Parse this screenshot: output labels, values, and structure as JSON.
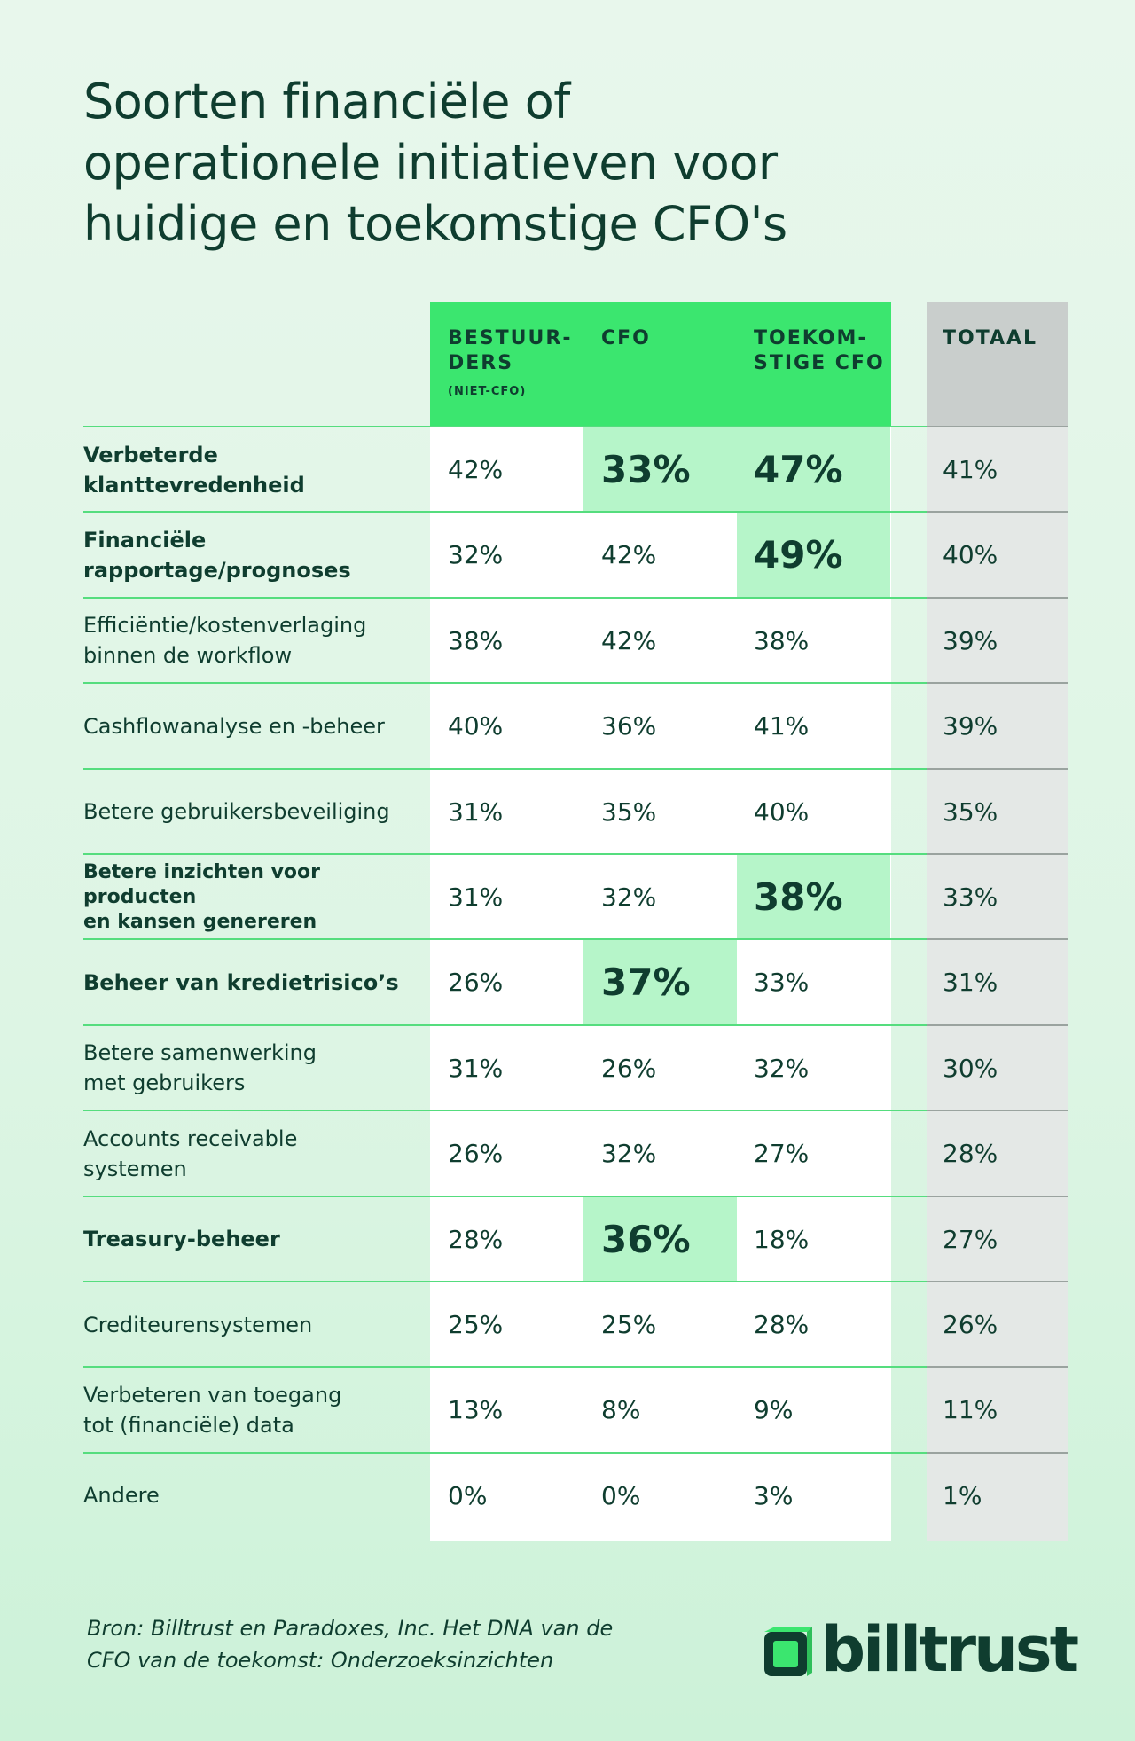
{
  "chart_data": {
    "type": "table",
    "title": [
      "Soorten financiële of",
      "operationele initiatieven voor",
      "huidige en toekomstige CFO's"
    ],
    "columns": [
      {
        "key": "b",
        "label_lines": [
          "BESTUUR-",
          "DERS"
        ],
        "sublabel": "(NIET-CFO)"
      },
      {
        "key": "c",
        "label_lines": [
          "CFO"
        ],
        "sublabel": ""
      },
      {
        "key": "t",
        "label_lines": [
          "TOEKOM-",
          "STIGE CFO"
        ],
        "sublabel": ""
      },
      {
        "key": "tot",
        "label_lines": [
          "TOTAAL"
        ],
        "sublabel": ""
      }
    ],
    "rows": [
      {
        "label": [
          "Verbeterde",
          "klanttevredenheid"
        ],
        "bold": true,
        "b": "42%",
        "c": "33%",
        "t": "47%",
        "tot": "41%",
        "highlight": [
          "c",
          "t"
        ]
      },
      {
        "label": [
          "Financiële",
          "rapportage/prognoses"
        ],
        "bold": true,
        "b": "32%",
        "c": "42%",
        "t": "49%",
        "tot": "40%",
        "highlight": [
          "t"
        ]
      },
      {
        "label": [
          "Efficiëntie/kostenverlaging",
          "binnen de workflow"
        ],
        "bold": false,
        "b": "38%",
        "c": "42%",
        "t": "38%",
        "tot": "39%",
        "highlight": []
      },
      {
        "label": [
          "Cashflowanalyse en -beheer"
        ],
        "bold": false,
        "b": "40%",
        "c": "36%",
        "t": "41%",
        "tot": "39%",
        "highlight": []
      },
      {
        "label": [
          "Betere gebruikersbeveiliging"
        ],
        "bold": false,
        "b": "31%",
        "c": "35%",
        "t": "40%",
        "tot": "35%",
        "highlight": []
      },
      {
        "label": [
          "Betere inzichten voor producten",
          "en kansen genereren"
        ],
        "bold": true,
        "small": true,
        "b": "31%",
        "c": "32%",
        "t": "38%",
        "tot": "33%",
        "highlight": [
          "t"
        ]
      },
      {
        "label": [
          "Beheer van kredietrisico’s"
        ],
        "bold": true,
        "b": "26%",
        "c": "37%",
        "t": "33%",
        "tot": "31%",
        "highlight": [
          "c"
        ]
      },
      {
        "label": [
          "Betere samenwerking",
          "met gebruikers"
        ],
        "bold": false,
        "b": "31%",
        "c": "26%",
        "t": "32%",
        "tot": "30%",
        "highlight": []
      },
      {
        "label": [
          "Accounts receivable",
          "systemen"
        ],
        "bold": false,
        "b": "26%",
        "c": "32%",
        "t": "27%",
        "tot": "28%",
        "highlight": []
      },
      {
        "label": [
          "Treasury-beheer"
        ],
        "bold": true,
        "b": "28%",
        "c": "36%",
        "t": "18%",
        "tot": "27%",
        "highlight": [
          "c"
        ]
      },
      {
        "label": [
          "Crediteurensystemen"
        ],
        "bold": false,
        "b": "25%",
        "c": "25%",
        "t": "28%",
        "tot": "26%",
        "highlight": []
      },
      {
        "label": [
          "Verbeteren van toegang",
          "tot (financiële) data"
        ],
        "bold": false,
        "b": "13%",
        "c": "8%",
        "t": "9%",
        "tot": "11%",
        "highlight": []
      },
      {
        "label": [
          "Andere"
        ],
        "bold": false,
        "b": "0%",
        "c": "0%",
        "t": "3%",
        "tot": "1%",
        "highlight": []
      }
    ],
    "colors": {
      "header_green": "#3be66f",
      "highlight": "#b6f5c9",
      "total_bg": "#e4e8e6",
      "total_header": "#c9cecc",
      "text": "#0f3d2f",
      "rule": "#55dd7e"
    }
  },
  "source": [
    "Bron: Billtrust en Paradoxes, Inc. Het DNA van de",
    "CFO van de toekomst: Onderzoeksinzichten"
  ],
  "logo": {
    "wordmark": "billtrust",
    "icon": "billtrust-logo-icon"
  }
}
